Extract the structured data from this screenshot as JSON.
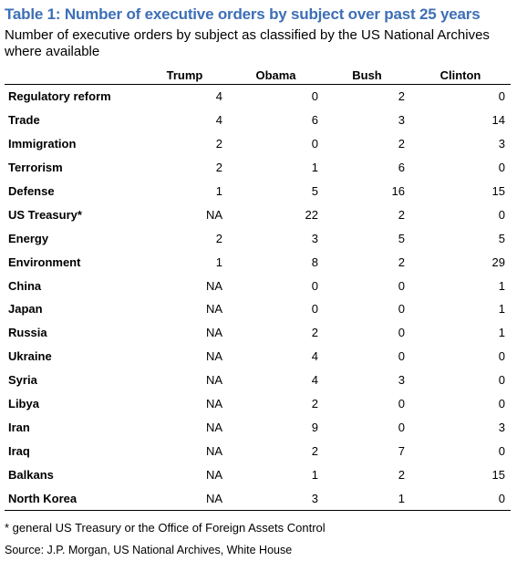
{
  "title": "Table 1: Number of executive orders by subject over past 25 years",
  "subtitle": "Number of executive orders by subject as classified by the US National Archives where available",
  "columns": [
    "",
    "Trump",
    "Obama",
    "Bush",
    "Clinton"
  ],
  "rows": [
    {
      "subject": "Regulatory reform",
      "values": [
        "4",
        "0",
        "2",
        "0"
      ]
    },
    {
      "subject": "Trade",
      "values": [
        "4",
        "6",
        "3",
        "14"
      ]
    },
    {
      "subject": "Immigration",
      "values": [
        "2",
        "0",
        "2",
        "3"
      ]
    },
    {
      "subject": "Terrorism",
      "values": [
        "2",
        "1",
        "6",
        "0"
      ]
    },
    {
      "subject": "Defense",
      "values": [
        "1",
        "5",
        "16",
        "15"
      ]
    },
    {
      "subject": "US Treasury*",
      "values": [
        "NA",
        "22",
        "2",
        "0"
      ]
    },
    {
      "subject": "Energy",
      "values": [
        "2",
        "3",
        "5",
        "5"
      ]
    },
    {
      "subject": "Environment",
      "values": [
        "1",
        "8",
        "2",
        "29"
      ]
    },
    {
      "subject": "China",
      "values": [
        "NA",
        "0",
        "0",
        "1"
      ]
    },
    {
      "subject": "Japan",
      "values": [
        "NA",
        "0",
        "0",
        "1"
      ]
    },
    {
      "subject": "Russia",
      "values": [
        "NA",
        "2",
        "0",
        "1"
      ]
    },
    {
      "subject": "Ukraine",
      "values": [
        "NA",
        "4",
        "0",
        "0"
      ]
    },
    {
      "subject": "Syria",
      "values": [
        "NA",
        "4",
        "3",
        "0"
      ]
    },
    {
      "subject": "Libya",
      "values": [
        "NA",
        "2",
        "0",
        "0"
      ]
    },
    {
      "subject": "Iran",
      "values": [
        "NA",
        "9",
        "0",
        "3"
      ]
    },
    {
      "subject": "Iraq",
      "values": [
        "NA",
        "2",
        "7",
        "0"
      ]
    },
    {
      "subject": "Balkans",
      "values": [
        "NA",
        "1",
        "2",
        "15"
      ]
    },
    {
      "subject": "North Korea",
      "values": [
        "NA",
        "3",
        "1",
        "0"
      ]
    }
  ],
  "footnote": "* general US Treasury or the Office of Foreign Assets Control",
  "source": "Source: J.P. Morgan, US National Archives, White House",
  "colors": {
    "title": "#3d6fb6"
  }
}
